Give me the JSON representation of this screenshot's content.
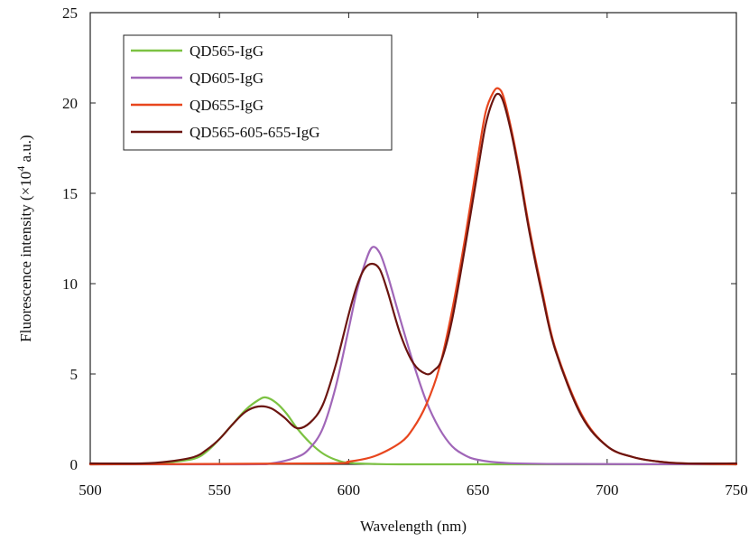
{
  "chart_data": {
    "type": "line",
    "xlabel": "Wavelength (nm)",
    "ylabel_prefix": "Fluorescence intensity (×10",
    "ylabel_exp": "4",
    "ylabel_suffix": " a.u.)",
    "xlim": [
      500,
      750
    ],
    "ylim": [
      0,
      25
    ],
    "x_ticks": [
      500,
      550,
      600,
      650,
      700,
      750
    ],
    "y_ticks": [
      0,
      5,
      10,
      15,
      20,
      25
    ],
    "grid": false,
    "legend_position": "top-left",
    "series": [
      {
        "name": "QD565-IgG",
        "color": "#7cc242",
        "x": [
          500,
          520,
          530,
          540,
          545,
          550,
          555,
          560,
          565,
          568,
          572,
          576,
          580,
          585,
          590,
          595,
          600,
          610,
          620,
          650,
          700,
          750
        ],
        "y": [
          0,
          0.02,
          0.1,
          0.3,
          0.7,
          1.4,
          2.2,
          3.0,
          3.55,
          3.7,
          3.4,
          2.8,
          2.0,
          1.2,
          0.6,
          0.25,
          0.08,
          0.02,
          0,
          0,
          0,
          0
        ]
      },
      {
        "name": "QD605-IgG",
        "color": "#a066b8",
        "x": [
          500,
          560,
          570,
          580,
          585,
          590,
          595,
          600,
          603,
          606,
          609,
          612,
          615,
          620,
          625,
          630,
          635,
          640,
          645,
          650,
          660,
          680,
          750
        ],
        "y": [
          0,
          0,
          0.05,
          0.4,
          0.9,
          2.0,
          4.3,
          7.5,
          9.5,
          11.0,
          12.0,
          11.7,
          10.5,
          8.0,
          5.6,
          3.5,
          2.0,
          1.0,
          0.5,
          0.25,
          0.08,
          0.02,
          0
        ]
      },
      {
        "name": "QD655-IgG",
        "color": "#e8461e",
        "x": [
          500,
          590,
          600,
          610,
          620,
          625,
          630,
          635,
          640,
          645,
          650,
          653,
          656,
          658,
          660,
          663,
          666,
          670,
          675,
          680,
          690,
          700,
          710,
          720,
          730,
          750
        ],
        "y": [
          0,
          0.05,
          0.15,
          0.45,
          1.2,
          2.0,
          3.3,
          5.3,
          8.5,
          12.5,
          17.0,
          19.5,
          20.6,
          20.8,
          20.3,
          18.5,
          16.3,
          13.0,
          9.5,
          6.4,
          2.8,
          1.0,
          0.4,
          0.15,
          0.05,
          0
        ]
      },
      {
        "name": "QD565-605-655-IgG",
        "color": "#6b1510",
        "x": [
          500,
          520,
          530,
          540,
          545,
          550,
          555,
          560,
          565,
          570,
          575,
          580,
          585,
          590,
          595,
          600,
          603,
          606,
          609,
          612,
          615,
          620,
          625,
          630,
          633,
          636,
          640,
          645,
          650,
          653,
          656,
          658,
          660,
          663,
          666,
          670,
          675,
          680,
          690,
          700,
          710,
          720,
          730,
          750
        ],
        "y": [
          0.05,
          0.05,
          0.15,
          0.4,
          0.8,
          1.4,
          2.2,
          2.9,
          3.2,
          3.1,
          2.6,
          2.0,
          2.3,
          3.3,
          5.5,
          8.3,
          9.8,
          10.8,
          11.1,
          10.8,
          9.6,
          7.2,
          5.6,
          5.0,
          5.2,
          5.8,
          8.0,
          12.0,
          16.3,
          18.8,
          20.2,
          20.5,
          20.0,
          18.3,
          16.1,
          12.8,
          9.3,
          6.3,
          2.7,
          1.0,
          0.4,
          0.15,
          0.05,
          0.05
        ]
      }
    ]
  }
}
